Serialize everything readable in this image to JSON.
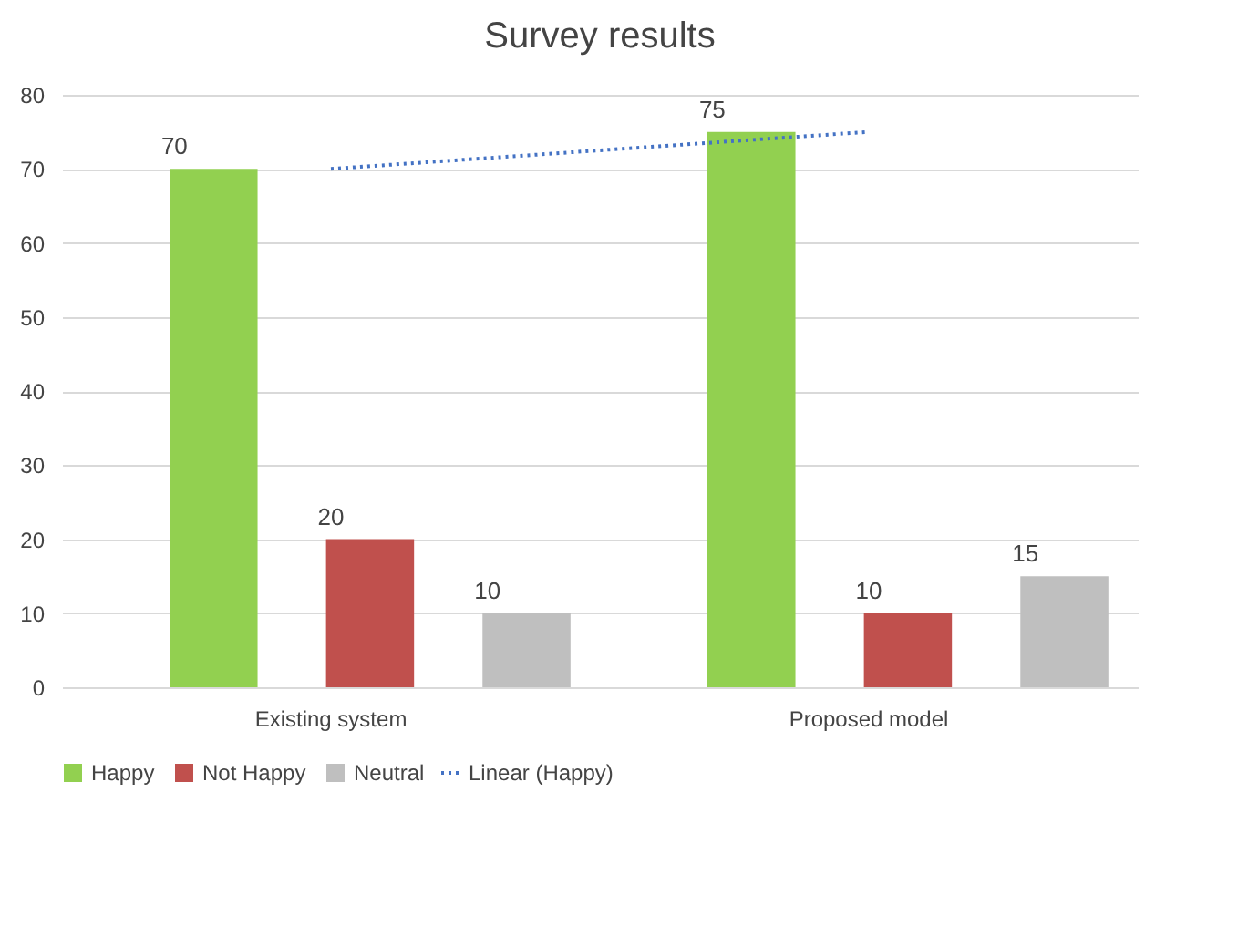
{
  "chart_data": {
    "type": "bar",
    "title": "Survey results",
    "categories": [
      "Existing system",
      "Proposed model"
    ],
    "series": [
      {
        "name": "Happy",
        "color": "#92d050",
        "values": [
          70,
          75
        ],
        "value_labels": [
          "70",
          "75"
        ]
      },
      {
        "name": "Not Happy",
        "color": "#c0504d",
        "values": [
          20,
          10
        ],
        "value_labels": [
          "20",
          "10"
        ]
      },
      {
        "name": "Neutral",
        "color": "#bfbfbf",
        "values": [
          10,
          15
        ],
        "value_labels": [
          "10",
          "15"
        ]
      },
      {
        "name": "Linear (Happy)",
        "type": "line",
        "color": "#4472c4",
        "line_style": "dotted",
        "x": [
          "Existing system",
          "Proposed model"
        ],
        "values": [
          70,
          75
        ]
      }
    ],
    "ylim": [
      0,
      80
    ],
    "yticks": [
      0,
      10,
      20,
      30,
      40,
      50,
      60,
      70,
      80
    ],
    "grid": "y",
    "legend": "bottom"
  }
}
